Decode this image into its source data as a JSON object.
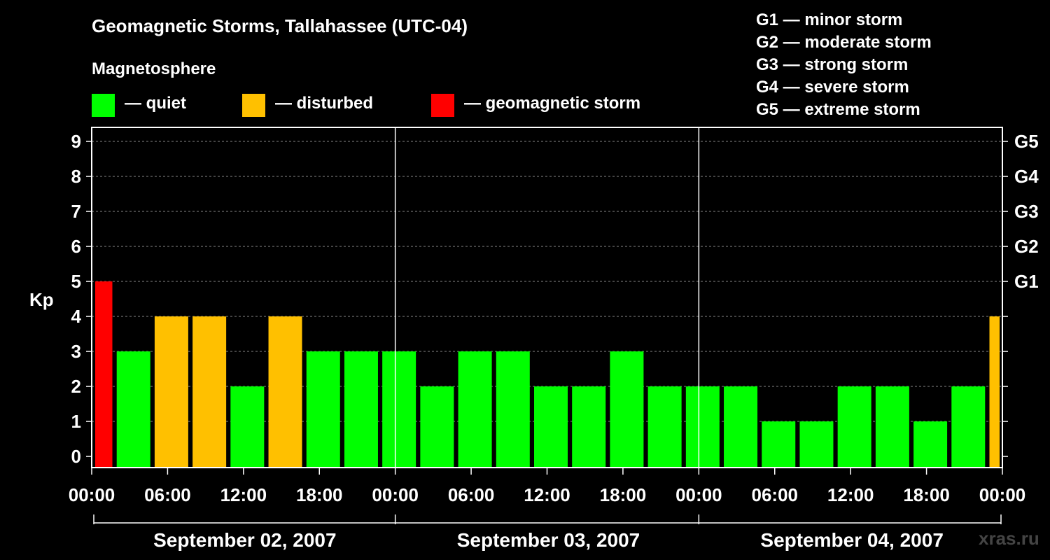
{
  "chart_data": {
    "type": "bar",
    "title": "Geomagnetic Storms, Tallahassee (UTC-04)",
    "ylabel": "Kp",
    "ylim": [
      0,
      9
    ],
    "yticks": [
      "0",
      "1",
      "2",
      "3",
      "4",
      "5",
      "6",
      "7",
      "8",
      "9"
    ],
    "right_ticks": [
      {
        "kp": 5,
        "label": "G1"
      },
      {
        "kp": 6,
        "label": "G2"
      },
      {
        "kp": 7,
        "label": "G3"
      },
      {
        "kp": 8,
        "label": "G4"
      },
      {
        "kp": 9,
        "label": "G5"
      }
    ],
    "xticks": [
      "00:00",
      "06:00",
      "12:00",
      "18:00",
      "00:00",
      "06:00",
      "12:00",
      "18:00",
      "00:00",
      "06:00",
      "12:00",
      "18:00",
      "00:00"
    ],
    "days": [
      "September 02, 2007",
      "September 03, 2007",
      "September 04, 2007"
    ],
    "grid": "dashed horizontal at each Kp level",
    "values": [
      5,
      3,
      4,
      4,
      2,
      4,
      3,
      3,
      3,
      2,
      3,
      3,
      2,
      2,
      3,
      2,
      2,
      2,
      1,
      1,
      2,
      2,
      1,
      2,
      4
    ],
    "status_colors": {
      "quiet": "#00ff00",
      "disturbed": "#ffc000",
      "storm": "#ff0000"
    }
  },
  "legend": {
    "heading": "Magnetosphere",
    "items": [
      {
        "label": "— quiet",
        "color": "#00ff00"
      },
      {
        "label": "— disturbed",
        "color": "#ffc000"
      },
      {
        "label": "— geomagnetic storm",
        "color": "#ff0000"
      }
    ]
  },
  "gscale": [
    "G1 — minor storm",
    "G2 — moderate storm",
    "G3 — strong storm",
    "G4 — severe storm",
    "G5 — extreme storm"
  ],
  "watermark": "xras.ru"
}
